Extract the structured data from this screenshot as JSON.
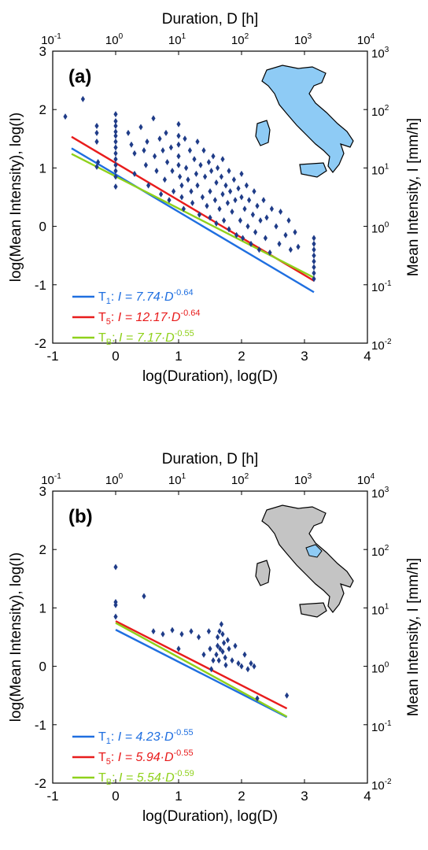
{
  "chart_data": [
    {
      "type": "scatter",
      "panel_label": "(a)",
      "map_highlight": "all of Italy",
      "xlabel": "log(Duration), log(D)",
      "ylabel": "log(Mean Intensity), log(I)",
      "top_xlabel": "Duration, D [h]",
      "right_ylabel": "Mean Intensity, I [mm/h]",
      "xlim": [
        -1,
        4
      ],
      "ylim": [
        -2,
        3
      ],
      "x_ticks": [
        "-1",
        "0",
        "1",
        "2",
        "3",
        "4"
      ],
      "y_ticks": [
        "-2",
        "-1",
        "0",
        "1",
        "2",
        "3"
      ],
      "top_ticks": [
        {
          "base": "10",
          "exp": "-1"
        },
        {
          "base": "10",
          "exp": "0"
        },
        {
          "base": "10",
          "exp": "1"
        },
        {
          "base": "10",
          "exp": "2"
        },
        {
          "base": "10",
          "exp": "3"
        },
        {
          "base": "10",
          "exp": "4"
        }
      ],
      "right_ticks": [
        {
          "base": "10",
          "exp": "-2"
        },
        {
          "base": "10",
          "exp": "-1"
        },
        {
          "base": "10",
          "exp": "0"
        },
        {
          "base": "10",
          "exp": "1"
        },
        {
          "base": "10",
          "exp": "2"
        },
        {
          "base": "10",
          "exp": "3"
        }
      ],
      "points_color": "#1f3c88",
      "points": [
        [
          -0.8,
          1.88
        ],
        [
          -0.52,
          2.18
        ],
        [
          -0.3,
          1.72
        ],
        [
          -0.3,
          1.6
        ],
        [
          -0.3,
          1.45
        ],
        [
          -0.28,
          1.1
        ],
        [
          -0.3,
          1.02
        ],
        [
          0,
          1.92
        ],
        [
          0,
          1.8
        ],
        [
          0,
          1.72
        ],
        [
          0,
          1.62
        ],
        [
          0,
          1.55
        ],
        [
          0,
          1.45
        ],
        [
          0,
          1.35
        ],
        [
          0,
          1.25
        ],
        [
          0,
          1.15
        ],
        [
          0,
          1.05
        ],
        [
          0,
          0.95
        ],
        [
          0,
          0.85
        ],
        [
          0,
          0.68
        ],
        [
          0.2,
          1.6
        ],
        [
          0.25,
          1.4
        ],
        [
          0.3,
          1.25
        ],
        [
          0.3,
          0.9
        ],
        [
          0.4,
          1.7
        ],
        [
          0.45,
          1.3
        ],
        [
          0.48,
          1.05
        ],
        [
          0.5,
          1.45
        ],
        [
          0.52,
          0.7
        ],
        [
          0.6,
          1.85
        ],
        [
          0.62,
          1.2
        ],
        [
          0.65,
          0.95
        ],
        [
          0.7,
          1.5
        ],
        [
          0.72,
          0.55
        ],
        [
          0.75,
          1.3
        ],
        [
          0.78,
          0.8
        ],
        [
          0.8,
          1.6
        ],
        [
          0.82,
          1.1
        ],
        [
          0.85,
          0.45
        ],
        [
          0.88,
          1.35
        ],
        [
          0.9,
          0.95
        ],
        [
          0.92,
          0.6
        ],
        [
          1.0,
          1.75
        ],
        [
          1.0,
          1.55
        ],
        [
          1.0,
          1.4
        ],
        [
          1.0,
          1.2
        ],
        [
          1.0,
          1.05
        ],
        [
          1.02,
          0.85
        ],
        [
          1.05,
          0.7
        ],
        [
          1.05,
          0.5
        ],
        [
          1.08,
          0.3
        ],
        [
          1.1,
          1.5
        ],
        [
          1.12,
          1.0
        ],
        [
          1.15,
          0.8
        ],
        [
          1.18,
          1.3
        ],
        [
          1.2,
          0.6
        ],
        [
          1.22,
          0.4
        ],
        [
          1.25,
          1.15
        ],
        [
          1.28,
          0.9
        ],
        [
          1.3,
          1.45
        ],
        [
          1.3,
          0.7
        ],
        [
          1.33,
          0.2
        ],
        [
          1.35,
          1.05
        ],
        [
          1.38,
          0.5
        ],
        [
          1.4,
          1.3
        ],
        [
          1.42,
          0.85
        ],
        [
          1.45,
          0.35
        ],
        [
          1.48,
          1.1
        ],
        [
          1.5,
          0.6
        ],
        [
          1.5,
          0.15
        ],
        [
          1.52,
          0.95
        ],
        [
          1.55,
          1.2
        ],
        [
          1.58,
          0.45
        ],
        [
          1.6,
          0.75
        ],
        [
          1.6,
          0.05
        ],
        [
          1.62,
          1.0
        ],
        [
          1.65,
          0.3
        ],
        [
          1.68,
          0.85
        ],
        [
          1.7,
          0.55
        ],
        [
          1.7,
          1.15
        ],
        [
          1.72,
          0.1
        ],
        [
          1.75,
          0.7
        ],
        [
          1.78,
          0.4
        ],
        [
          1.8,
          0.95
        ],
        [
          1.8,
          -0.05
        ],
        [
          1.82,
          0.6
        ],
        [
          1.85,
          0.25
        ],
        [
          1.88,
          0.8
        ],
        [
          1.9,
          0.45
        ],
        [
          1.92,
          -0.15
        ],
        [
          1.95,
          0.65
        ],
        [
          1.98,
          0.1
        ],
        [
          2.0,
          0.9
        ],
        [
          2.0,
          0.5
        ],
        [
          2.02,
          -0.2
        ],
        [
          2.05,
          0.3
        ],
        [
          2.08,
          0.7
        ],
        [
          2.1,
          0.0
        ],
        [
          2.12,
          0.45
        ],
        [
          2.15,
          -0.3
        ],
        [
          2.18,
          0.2
        ],
        [
          2.2,
          0.6
        ],
        [
          2.22,
          -0.1
        ],
        [
          2.25,
          0.35
        ],
        [
          2.28,
          -0.4
        ],
        [
          2.3,
          0.1
        ],
        [
          2.35,
          0.45
        ],
        [
          2.38,
          -0.2
        ],
        [
          2.4,
          0.15
        ],
        [
          2.45,
          -0.45
        ],
        [
          2.48,
          0.3
        ],
        [
          2.55,
          0.0
        ],
        [
          2.6,
          -0.3
        ],
        [
          2.62,
          0.25
        ],
        [
          2.7,
          -0.15
        ],
        [
          2.75,
          0.1
        ],
        [
          2.78,
          -0.4
        ],
        [
          2.85,
          -0.1
        ],
        [
          2.9,
          -0.35
        ],
        [
          3.15,
          -0.2
        ],
        [
          3.15,
          -0.3
        ],
        [
          3.15,
          -0.4
        ],
        [
          3.15,
          -0.5
        ],
        [
          3.15,
          -0.6
        ],
        [
          3.15,
          -0.7
        ],
        [
          3.15,
          -0.8
        ],
        [
          3.15,
          -0.9
        ]
      ],
      "fit_lines": [
        {
          "label_prefix": "T",
          "label_sub": "1",
          "label_eq": "I = 7.74·D",
          "label_exp": "-0.64",
          "color": "#1f6fe0",
          "coef": 7.74,
          "exp": -0.64,
          "x_range": [
            -0.7,
            3.15
          ]
        },
        {
          "label_prefix": "T",
          "label_sub": "5",
          "label_eq": "I = 12.17·D",
          "label_exp": "-0.64",
          "color": "#e81c1c",
          "coef": 12.17,
          "exp": -0.64,
          "x_range": [
            -0.7,
            3.15
          ]
        },
        {
          "label_prefix": "T",
          "label_sub": "B",
          "label_eq": "I = 7.17·D",
          "label_exp": "-0.55",
          "color": "#8fd11b",
          "coef": 7.17,
          "exp": -0.55,
          "x_range": [
            -0.7,
            3.15
          ]
        }
      ]
    },
    {
      "type": "scatter",
      "panel_label": "(b)",
      "map_highlight": "single region in central-southern Italy",
      "xlabel": "log(Duration), log(D)",
      "ylabel": "log(Mean Intensity), log(I)",
      "top_xlabel": "Duration, D [h]",
      "right_ylabel": "Mean Intensity, I [mm/h]",
      "xlim": [
        -1,
        4
      ],
      "ylim": [
        -2,
        3
      ],
      "x_ticks": [
        "-1",
        "0",
        "1",
        "2",
        "3",
        "4"
      ],
      "y_ticks": [
        "-2",
        "-1",
        "0",
        "1",
        "2",
        "3"
      ],
      "top_ticks": [
        {
          "base": "10",
          "exp": "-1"
        },
        {
          "base": "10",
          "exp": "0"
        },
        {
          "base": "10",
          "exp": "1"
        },
        {
          "base": "10",
          "exp": "2"
        },
        {
          "base": "10",
          "exp": "3"
        },
        {
          "base": "10",
          "exp": "4"
        }
      ],
      "right_ticks": [
        {
          "base": "10",
          "exp": "-2"
        },
        {
          "base": "10",
          "exp": "-1"
        },
        {
          "base": "10",
          "exp": "0"
        },
        {
          "base": "10",
          "exp": "1"
        },
        {
          "base": "10",
          "exp": "2"
        },
        {
          "base": "10",
          "exp": "3"
        }
      ],
      "points_color": "#1f3c88",
      "points": [
        [
          0,
          1.7
        ],
        [
          0,
          1.1
        ],
        [
          0,
          1.05
        ],
        [
          0,
          0.85
        ],
        [
          0.45,
          1.2
        ],
        [
          0.6,
          0.6
        ],
        [
          0.75,
          0.55
        ],
        [
          0.9,
          0.62
        ],
        [
          1.0,
          0.3
        ],
        [
          1.05,
          0.55
        ],
        [
          1.2,
          0.6
        ],
        [
          1.32,
          0.5
        ],
        [
          1.4,
          0.2
        ],
        [
          1.48,
          0.6
        ],
        [
          1.5,
          0.3
        ],
        [
          1.52,
          -0.05
        ],
        [
          1.55,
          0.1
        ],
        [
          1.6,
          0.2
        ],
        [
          1.62,
          0.35
        ],
        [
          1.62,
          0.5
        ],
        [
          1.64,
          0.1
        ],
        [
          1.65,
          0.6
        ],
        [
          1.66,
          0.3
        ],
        [
          1.68,
          0.72
        ],
        [
          1.7,
          0.55
        ],
        [
          1.7,
          0.25
        ],
        [
          1.72,
          0.4
        ],
        [
          1.74,
          0.15
        ],
        [
          1.75,
          0.02
        ],
        [
          1.78,
          0.45
        ],
        [
          1.8,
          0.3
        ],
        [
          1.85,
          0.1
        ],
        [
          1.9,
          0.35
        ],
        [
          1.95,
          0.05
        ],
        [
          2.0,
          0.0
        ],
        [
          2.05,
          0.2
        ],
        [
          2.1,
          -0.05
        ],
        [
          2.15,
          0.05
        ],
        [
          2.2,
          0.0
        ],
        [
          2.25,
          -0.55
        ],
        [
          2.72,
          -0.5
        ]
      ],
      "fit_lines": [
        {
          "label_prefix": "T",
          "label_sub": "1",
          "label_eq": "I = 4.23·D",
          "label_exp": "-0.55",
          "color": "#1f6fe0",
          "coef": 4.23,
          "exp": -0.55,
          "x_range": [
            0,
            2.72
          ]
        },
        {
          "label_prefix": "T",
          "label_sub": "5",
          "label_eq": "I = 5.94·D",
          "label_exp": "-0.55",
          "color": "#e81c1c",
          "coef": 5.94,
          "exp": -0.55,
          "x_range": [
            0,
            2.72
          ]
        },
        {
          "label_prefix": "T",
          "label_sub": "B",
          "label_eq": "I = 5.54·D",
          "label_exp": "-0.59",
          "color": "#8fd11b",
          "coef": 5.54,
          "exp": -0.59,
          "x_range": [
            0,
            2.72
          ]
        }
      ]
    }
  ],
  "colors": {
    "map_fill_a": "#8ecbf5",
    "map_fill_b": "#c4c4c4",
    "map_highlight_b": "#8ecbf5",
    "map_stroke": "#000000"
  }
}
